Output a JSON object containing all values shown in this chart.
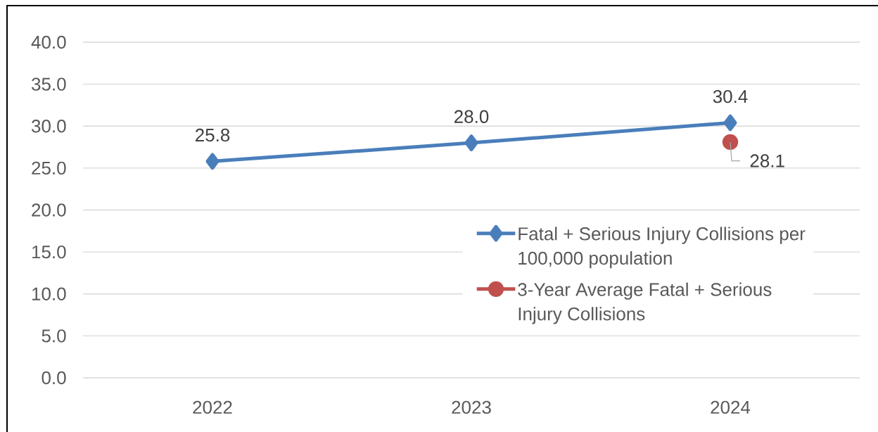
{
  "chart_data": {
    "type": "line",
    "categories": [
      "2022",
      "2023",
      "2024"
    ],
    "series": [
      {
        "name": "Fatal + Serious Injury Collisions per 100,000 population",
        "color": "#4a7ebb",
        "marker": "diamond",
        "values": [
          25.8,
          28.0,
          30.4
        ],
        "value_labels": [
          "25.8",
          "28.0",
          "30.4"
        ]
      },
      {
        "name": "3-Year  Average Fatal + Serious Injury Collisions",
        "color": "#c0504d",
        "marker": "circle",
        "values": [
          null,
          null,
          28.1
        ],
        "value_labels": [
          null,
          null,
          "28.1"
        ]
      }
    ],
    "ylim": [
      0,
      40
    ],
    "yticks": [
      {
        "value": 0,
        "label": "0.0"
      },
      {
        "value": 5,
        "label": "5.0"
      },
      {
        "value": 10,
        "label": "10.0"
      },
      {
        "value": 15,
        "label": "15.0"
      },
      {
        "value": 20,
        "label": "20.0"
      },
      {
        "value": 25,
        "label": "25.0"
      },
      {
        "value": 30,
        "label": "30.0"
      },
      {
        "value": 35,
        "label": "35.0"
      },
      {
        "value": 40,
        "label": "40.0"
      }
    ],
    "grid": "y",
    "legend": "right"
  }
}
